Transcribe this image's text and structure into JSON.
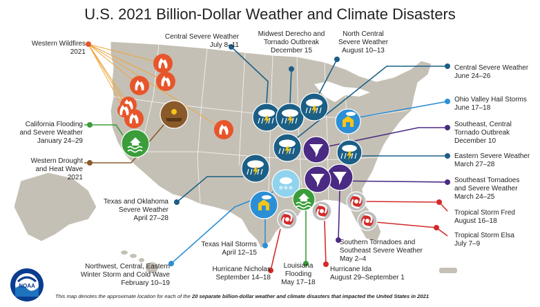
{
  "title": "U.S. 2021 Billion-Dollar Weather and Climate Disasters",
  "colors": {
    "land": "#c5c0b5",
    "land_stroke": "#ffffff",
    "wildfire": "#e8552b",
    "flood": "#3a9d3a",
    "drought": "#8b5a2b",
    "severe": "#1b5f86",
    "tornado": "#4a2a83",
    "hail": "#2b8fd6",
    "winter": "#8fd3ee",
    "tropical": "#bdbdbd",
    "tropical_line": "#d42a2a",
    "lines_wildfire": "#f0a43a",
    "lines_nav": "#1b5f86"
  },
  "events": [
    {
      "id": "western-wildfires",
      "type": "wildfire",
      "lines": [
        "Western Wildfires",
        "2021"
      ]
    },
    {
      "id": "california-flooding",
      "type": "flood",
      "lines": [
        "California Flooding",
        "and Severe Weather",
        "January 24–29"
      ]
    },
    {
      "id": "western-drought",
      "type": "drought",
      "lines": [
        "Western Drought",
        "and Heat Wave",
        "2021"
      ]
    },
    {
      "id": "texas-oklahoma",
      "type": "severe",
      "lines": [
        "Texas and Oklahoma",
        "Severe Weather",
        "April 27–28"
      ]
    },
    {
      "id": "winter-storm",
      "type": "winter",
      "lines": [
        "Northwest, Central, Eastern",
        "Winter Storm and Cold Wave",
        "February 10–19"
      ]
    },
    {
      "id": "texas-hail",
      "type": "hail",
      "lines": [
        "Texas Hail Storms",
        "April 12–15"
      ]
    },
    {
      "id": "hurricane-nicholas",
      "type": "tropical",
      "lines": [
        "Hurricane Nicholas",
        "September 14–18"
      ]
    },
    {
      "id": "louisiana-flooding",
      "type": "flood",
      "lines": [
        "Louisiana",
        "Flooding",
        "May 17–18"
      ]
    },
    {
      "id": "hurricane-ida",
      "type": "tropical",
      "lines": [
        "Hurricane Ida",
        "August 29–September 1"
      ]
    },
    {
      "id": "southern-tornadoes",
      "type": "tornado",
      "lines": [
        "Southern Tornadoes and",
        "Southeast Severe Weather",
        "May 2–4"
      ]
    },
    {
      "id": "central-severe-jul",
      "type": "severe",
      "lines": [
        "Central Severe Weather",
        "July 8–11"
      ]
    },
    {
      "id": "midwest-derecho",
      "type": "severe",
      "lines": [
        "Midwest Derecho and",
        "Tornado Outbreak",
        "December 15"
      ]
    },
    {
      "id": "north-central-severe",
      "type": "severe",
      "lines": [
        "North Central",
        "Severe Weather",
        "August 10–13"
      ]
    },
    {
      "id": "central-severe-jun",
      "type": "severe",
      "lines": [
        "Central Severe Weather",
        "June 24–26"
      ]
    },
    {
      "id": "ohio-valley-hail",
      "type": "hail",
      "lines": [
        "Ohio Valley Hail Storms",
        "June 17–18"
      ]
    },
    {
      "id": "southeast-central-tornado",
      "type": "tornado",
      "lines": [
        "Southeast, Central",
        "Tornado Outbreak",
        "December 10"
      ]
    },
    {
      "id": "eastern-severe",
      "type": "severe",
      "lines": [
        "Eastern Severe Weather",
        "March 27–28"
      ]
    },
    {
      "id": "southeast-tornadoes",
      "type": "tornado",
      "lines": [
        "Southeast Tornadoes",
        "and Severe Weather",
        "March 24–25"
      ]
    },
    {
      "id": "tropical-fred",
      "type": "tropical",
      "lines": [
        "Tropical Storm Fred",
        "August 16–18"
      ]
    },
    {
      "id": "tropical-elsa",
      "type": "tropical",
      "lines": [
        "Tropical Storm Elsa",
        "July 7–9"
      ]
    }
  ],
  "footnote": {
    "pre": "This map denotes the approximate location for each of the ",
    "bold": "20 separate billion-dollar weather and climate disasters that impacted the United States in 2021",
    "post": ""
  },
  "logo_text": "NOAA"
}
